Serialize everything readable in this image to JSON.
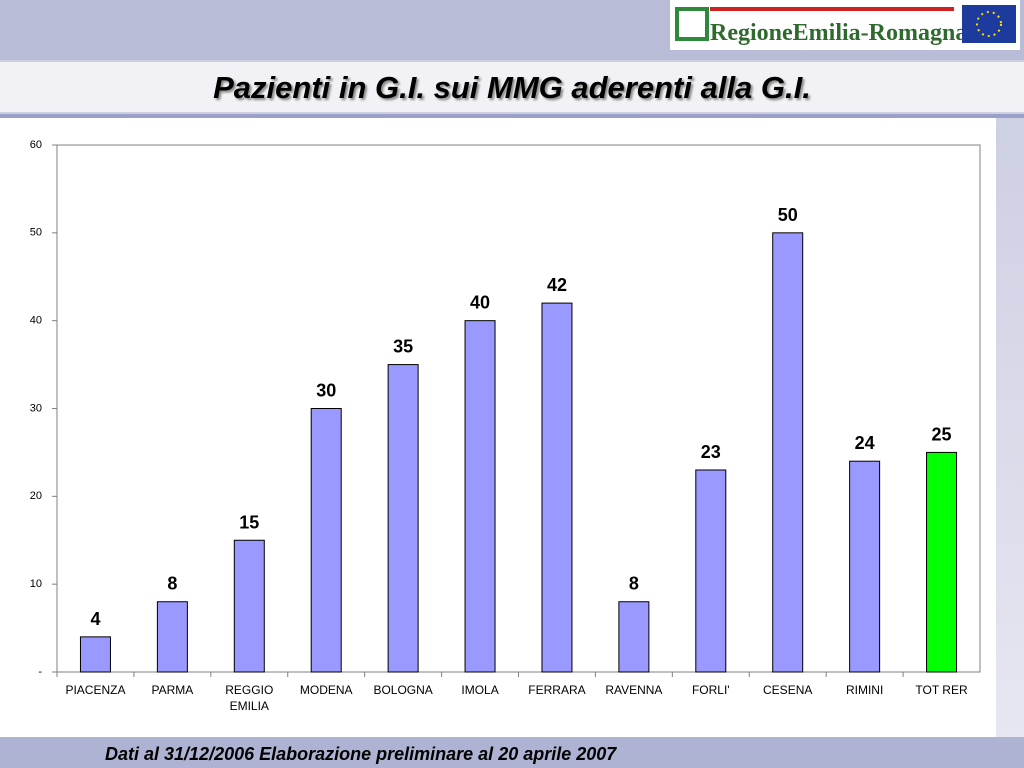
{
  "header": {
    "logo_text": "RegioneEmilia-Romagna"
  },
  "chart_data": {
    "type": "bar",
    "title": "Pazienti in G.I. sui MMG aderenti alla G.I.",
    "categories": [
      "PIACENZA",
      "PARMA",
      "REGGIO EMILIA",
      "MODENA",
      "BOLOGNA",
      "IMOLA",
      "FERRARA",
      "RAVENNA",
      "FORLI'",
      "CESENA",
      "RIMINI",
      "TOT RER"
    ],
    "values": [
      4,
      8,
      15,
      30,
      35,
      40,
      42,
      8,
      23,
      50,
      24,
      25
    ],
    "colors": [
      "#9999ff",
      "#9999ff",
      "#9999ff",
      "#9999ff",
      "#9999ff",
      "#9999ff",
      "#9999ff",
      "#9999ff",
      "#9999ff",
      "#9999ff",
      "#9999ff",
      "#00ff00"
    ],
    "ylim": [
      0,
      60
    ],
    "yticks": [
      {
        "value": 0,
        "label": "-"
      },
      10,
      20,
      30,
      40,
      50,
      60
    ],
    "grid": false
  },
  "footer": {
    "note": "Dati al 31/12/2006 Elaborazione preliminare al 20 aprile 2007"
  }
}
